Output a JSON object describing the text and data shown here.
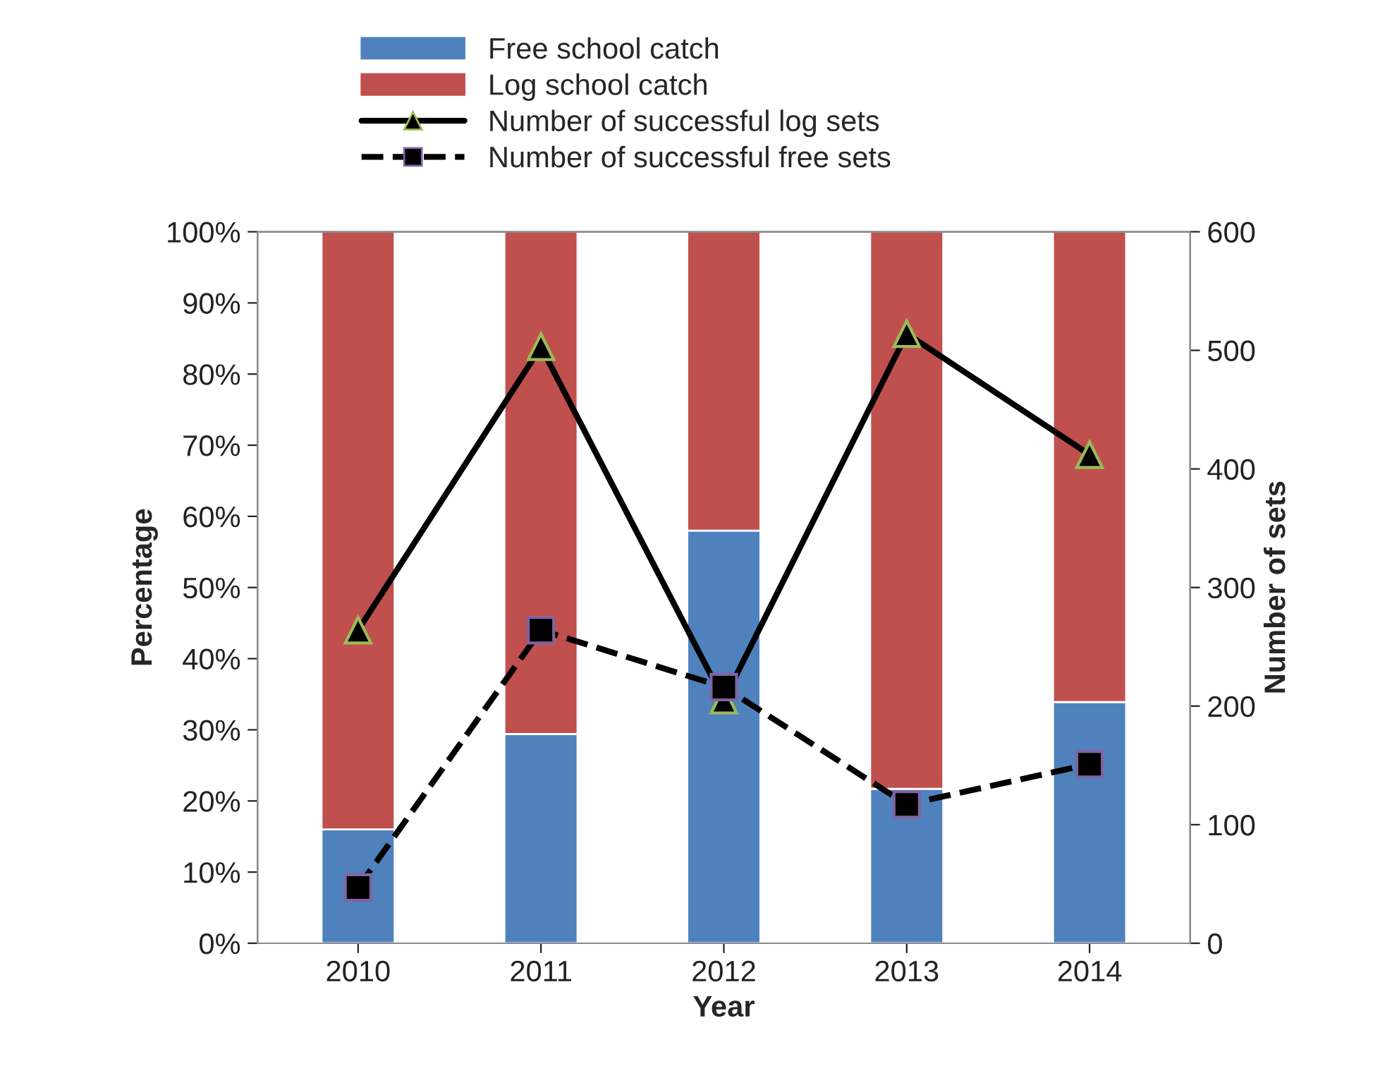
{
  "chart_data": {
    "type": "bar",
    "stacked": true,
    "xlabel": "Year",
    "ylabel": "Percentage",
    "y2label": "Number of sets",
    "categories": [
      "2010",
      "2011",
      "2012",
      "2013",
      "2014"
    ],
    "series": [
      {
        "name": "Free school catch",
        "color": "#4f81bd",
        "values": [
          16.0,
          29.4,
          58.0,
          21.7,
          33.9
        ]
      },
      {
        "name": "Log school catch",
        "color": "#c0504d",
        "values": [
          84.0,
          70.6,
          42.0,
          78.3,
          66.1
        ]
      },
      {
        "name": "Number of successful log sets",
        "type": "line",
        "axis": "y2",
        "color": "#000000",
        "marker": "triangle",
        "line_style": "solid",
        "values": [
          264,
          503,
          205,
          514,
          412
        ]
      },
      {
        "name": "Number of successful free sets",
        "type": "line",
        "axis": "y2",
        "color": "#000000",
        "marker": "square",
        "line_style": "dashed",
        "values": [
          47,
          264,
          216,
          117,
          151
        ]
      }
    ],
    "ylim": [
      0,
      100
    ],
    "yticks": [
      {
        "value": 0,
        "label": "0%"
      },
      {
        "value": 10,
        "label": "10%"
      },
      {
        "value": 20,
        "label": "20%"
      },
      {
        "value": 30,
        "label": "30%"
      },
      {
        "value": 40,
        "label": "40%"
      },
      {
        "value": 50,
        "label": "50%"
      },
      {
        "value": 60,
        "label": "60%"
      },
      {
        "value": 70,
        "label": "70%"
      },
      {
        "value": 80,
        "label": "80%"
      },
      {
        "value": 90,
        "label": "90%"
      },
      {
        "value": 100,
        "label": "100%"
      }
    ],
    "y2lim": [
      0,
      600
    ],
    "y2ticks": [
      0,
      100,
      200,
      300,
      400,
      500,
      600
    ],
    "grid": false,
    "legend": "top"
  }
}
